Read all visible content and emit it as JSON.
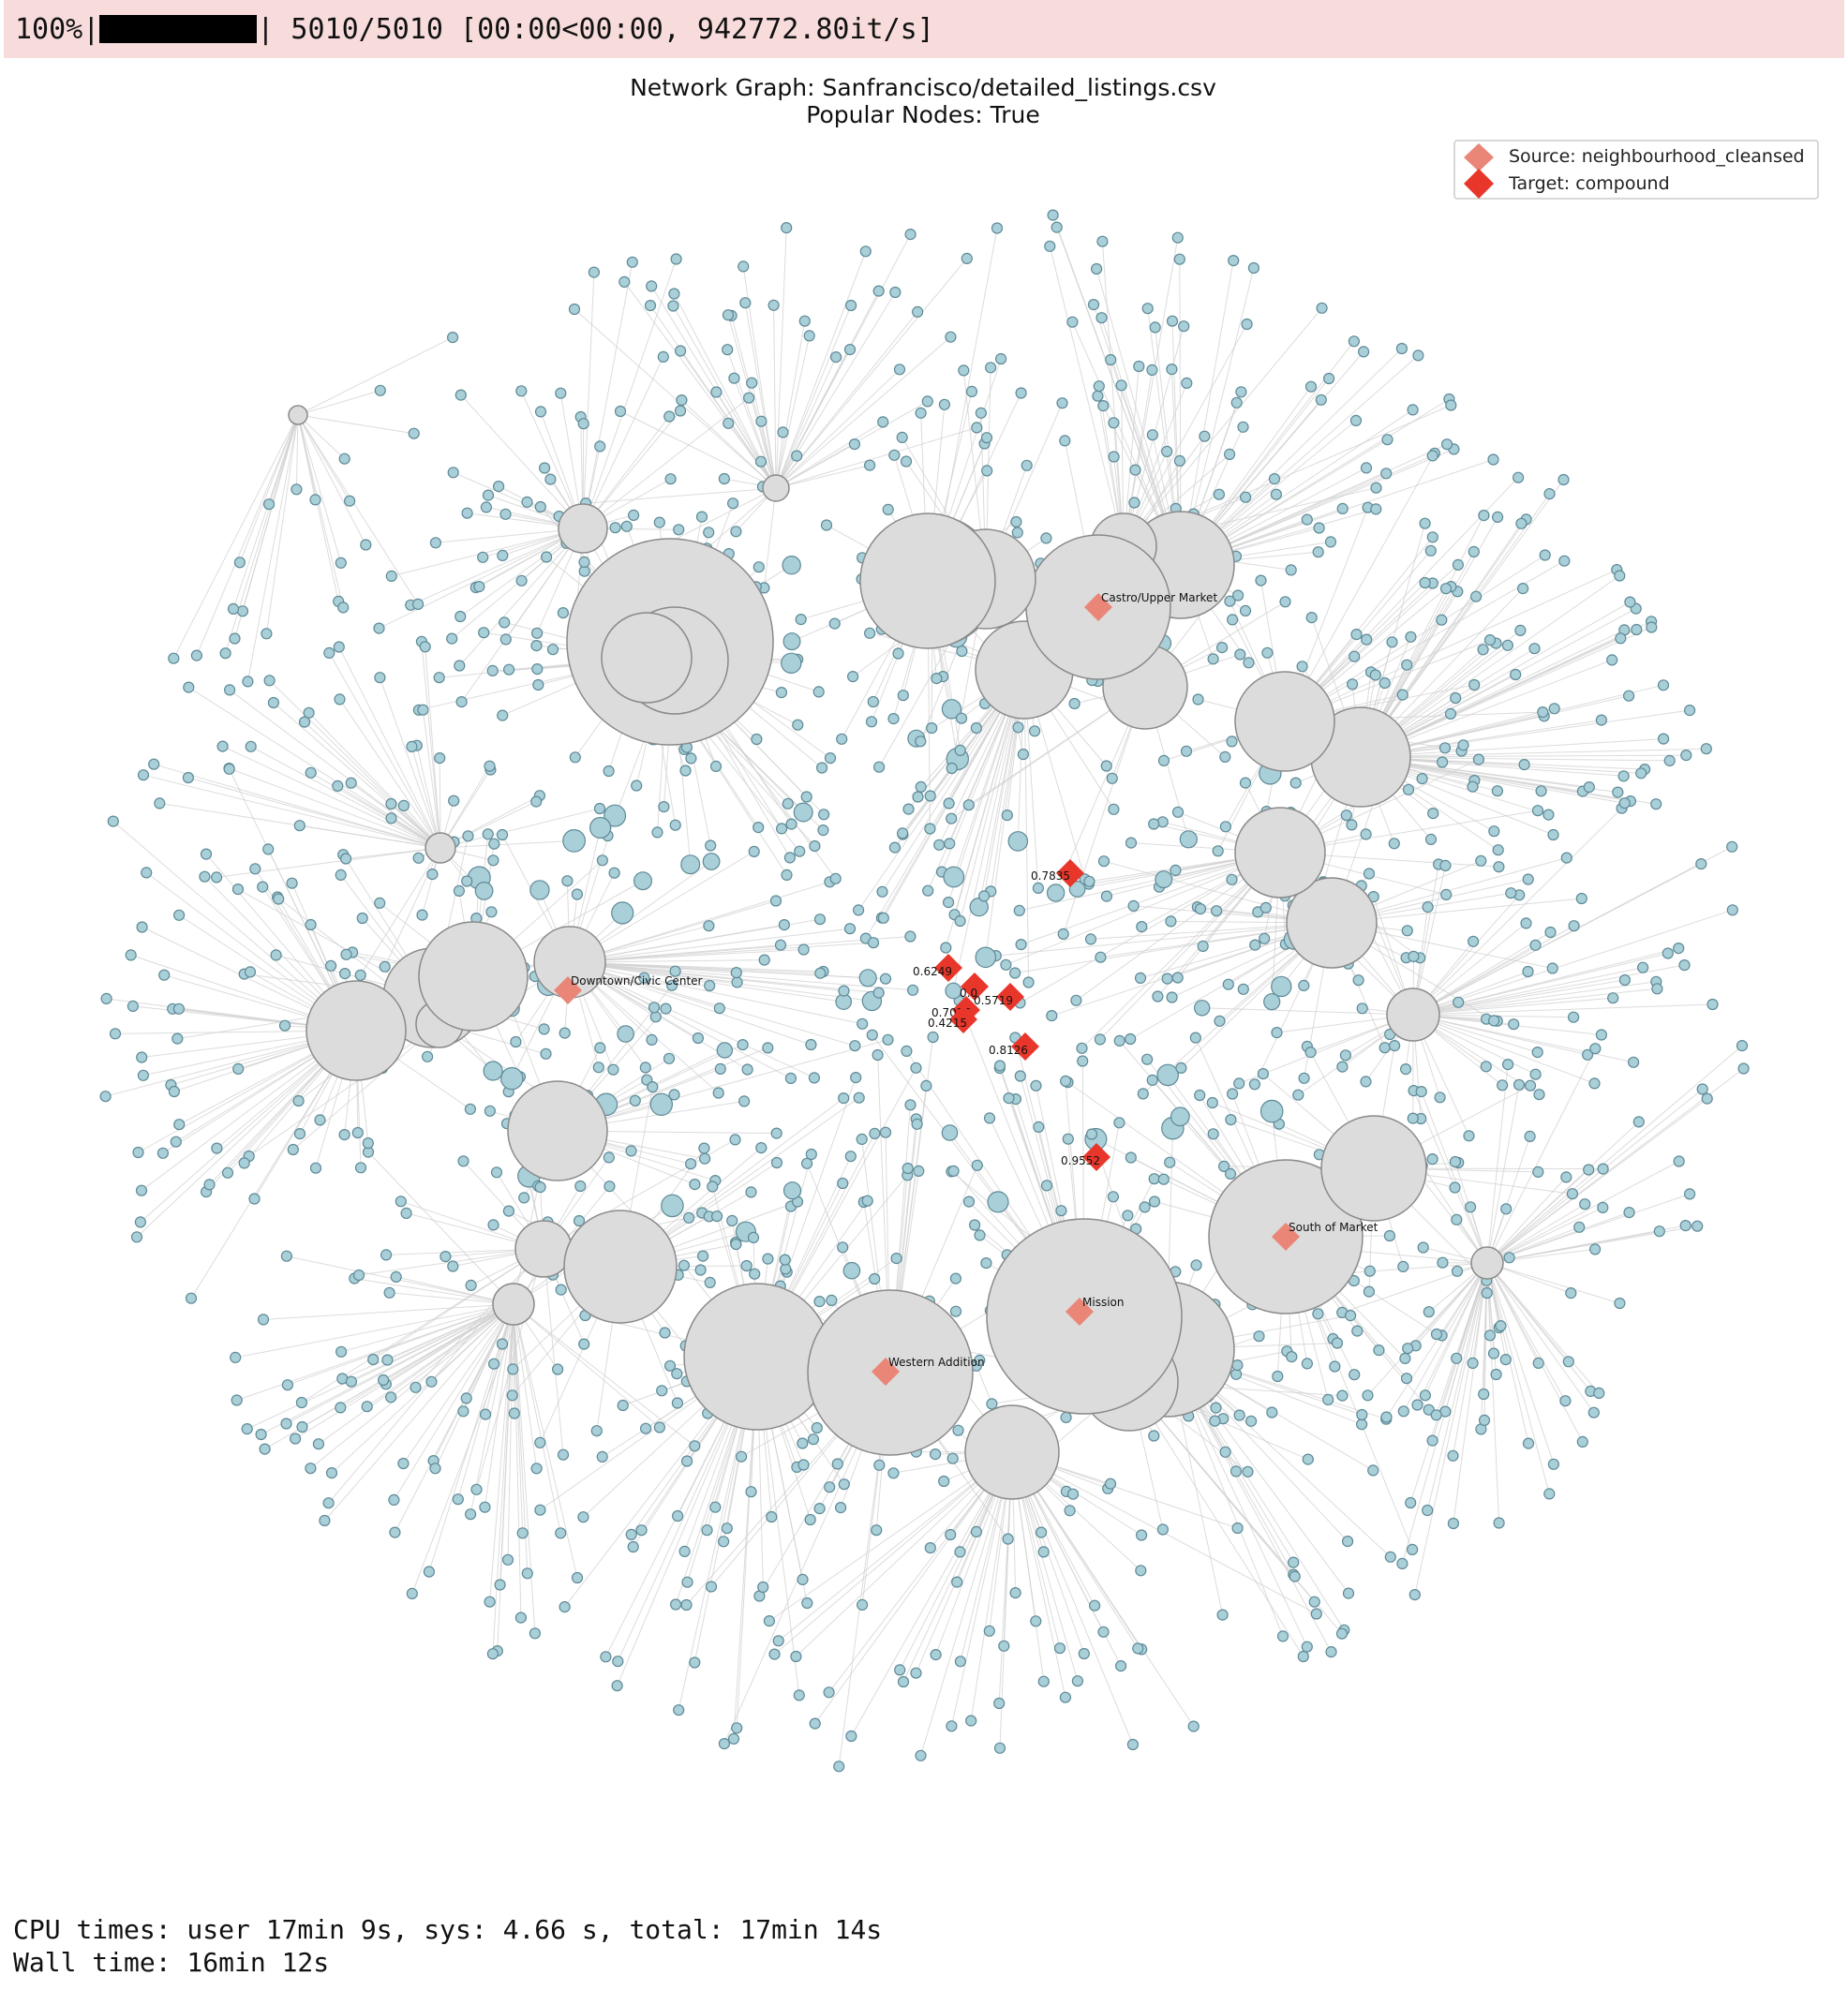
{
  "progress": {
    "percent_label": "100%|",
    "fraction": 1.0,
    "right_label": "| 5010/5010 [00:00<00:00, 942772.80it/s]"
  },
  "figure": {
    "title_line1": "Network Graph: Sanfrancisco/detailed_listings.csv",
    "title_line2": "Popular Nodes: True"
  },
  "legend": {
    "source_label": "Source: neighbourhood_cleansed",
    "target_label": "Target: compound"
  },
  "colors": {
    "edge": "#d0d0d0",
    "leaf_fill": "#a9cfd9",
    "leaf_stroke": "#5f8a96",
    "hub_fill": "#dcdcdc",
    "hub_stroke": "#8a8a8a",
    "source_marker": "#ea8677",
    "target_marker": "#e8372a"
  },
  "source_nodes": [
    {
      "label": "Castro/Upper Market"
    },
    {
      "label": "Downtown/Civic Center"
    },
    {
      "label": "South of Market"
    },
    {
      "label": "Mission"
    },
    {
      "label": "Western Addition"
    }
  ],
  "target_nodes": [
    {
      "label": "0.7835"
    },
    {
      "label": "0.6249"
    },
    {
      "label": "0.0"
    },
    {
      "label": "0.5719"
    },
    {
      "label": "0.7036"
    },
    {
      "label": "0.4215"
    },
    {
      "label": "0.8126"
    },
    {
      "label": "0.9552"
    }
  ],
  "footer": {
    "line1": "CPU times: user 17min 9s, sys: 4.66 s, total: 17min 14s",
    "line2": "Wall time: 16min 12s"
  }
}
